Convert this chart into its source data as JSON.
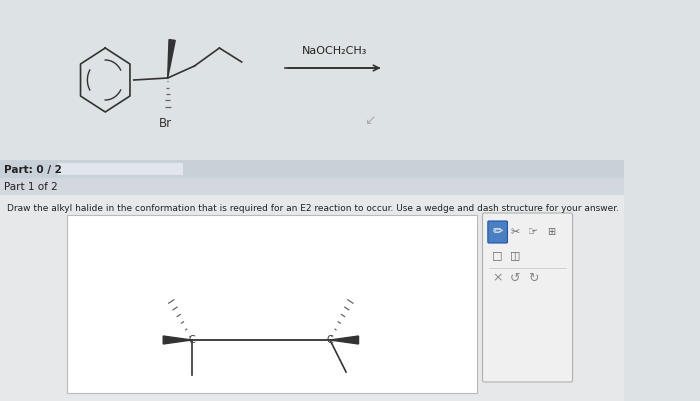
{
  "overall_bg": "#dde2e5",
  "top_area_bg": "#dde2e5",
  "part_bar_bg": "#c8d0d8",
  "part_bar_progress_bg": "#e0e6ec",
  "part1_bar_bg": "#d2d8de",
  "bottom_area_bg": "#e8e8e8",
  "drawing_box_bg": "#e8eaec",
  "toolbar_bg": "#f0f0f0",
  "toolbar_border": "#b0b0b0",
  "pencil_highlight": "#4a90d9",
  "text_dark": "#222222",
  "text_mid": "#444444",
  "bond_color": "#333333",
  "bond_color2": "#555555",
  "reagent_text": "NaOCH₂CH₃",
  "part_label": "Part: 0 / 2",
  "part1_label": "Part 1 of 2",
  "instruction": "Draw the alkyl halide in the conformation that is required for an E2 reaction to occur. Use a wedge and dash structure for your answer."
}
